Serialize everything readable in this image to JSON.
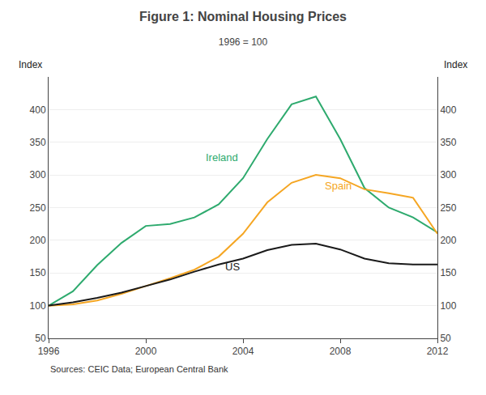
{
  "chart_data": {
    "type": "line",
    "title": "Figure 1: Nominal Housing Prices",
    "subtitle": "1996 = 100",
    "ylabel": "Index",
    "y2label": "Index",
    "source": "Sources: CEIC Data; European Central Bank",
    "x": [
      1996,
      1997,
      1998,
      1999,
      2000,
      2001,
      2002,
      2003,
      2004,
      2005,
      2006,
      2007,
      2008,
      2009,
      2010,
      2011,
      2012
    ],
    "series": [
      {
        "name": "Ireland",
        "color": "#2eaa6e",
        "values": [
          100,
          122,
          162,
          196,
          222,
          225,
          235,
          255,
          295,
          355,
          408,
          420,
          355,
          280,
          250,
          235,
          212
        ]
      },
      {
        "name": "Spain",
        "color": "#f5a623",
        "values": [
          100,
          102,
          108,
          118,
          130,
          142,
          155,
          175,
          210,
          258,
          288,
          300,
          295,
          278,
          272,
          265,
          210
        ]
      },
      {
        "name": "US",
        "color": "#1a1a1a",
        "values": [
          100,
          105,
          112,
          120,
          130,
          140,
          152,
          163,
          172,
          185,
          193,
          195,
          186,
          172,
          165,
          163,
          163
        ]
      }
    ],
    "annotations": [
      {
        "text": "Ireland",
        "x": 2002.4,
        "y": 315,
        "color": "#2eaa6e"
      },
      {
        "text": "Spain",
        "x": 2007.3,
        "y": 272,
        "color": "#f5a623"
      },
      {
        "text": "US",
        "x": 2003.2,
        "y": 148,
        "color": "#1a1a1a"
      }
    ],
    "xlim": [
      1996,
      2012
    ],
    "xticks": [
      1996,
      2000,
      2004,
      2008,
      2012
    ],
    "ylim": [
      50,
      450
    ],
    "yticks": [
      50,
      100,
      150,
      200,
      250,
      300,
      350,
      400
    ],
    "y2lim": [
      50,
      450
    ],
    "y2ticks": [
      50,
      100,
      150,
      200,
      250,
      300,
      350,
      400
    ],
    "grid": "y"
  }
}
